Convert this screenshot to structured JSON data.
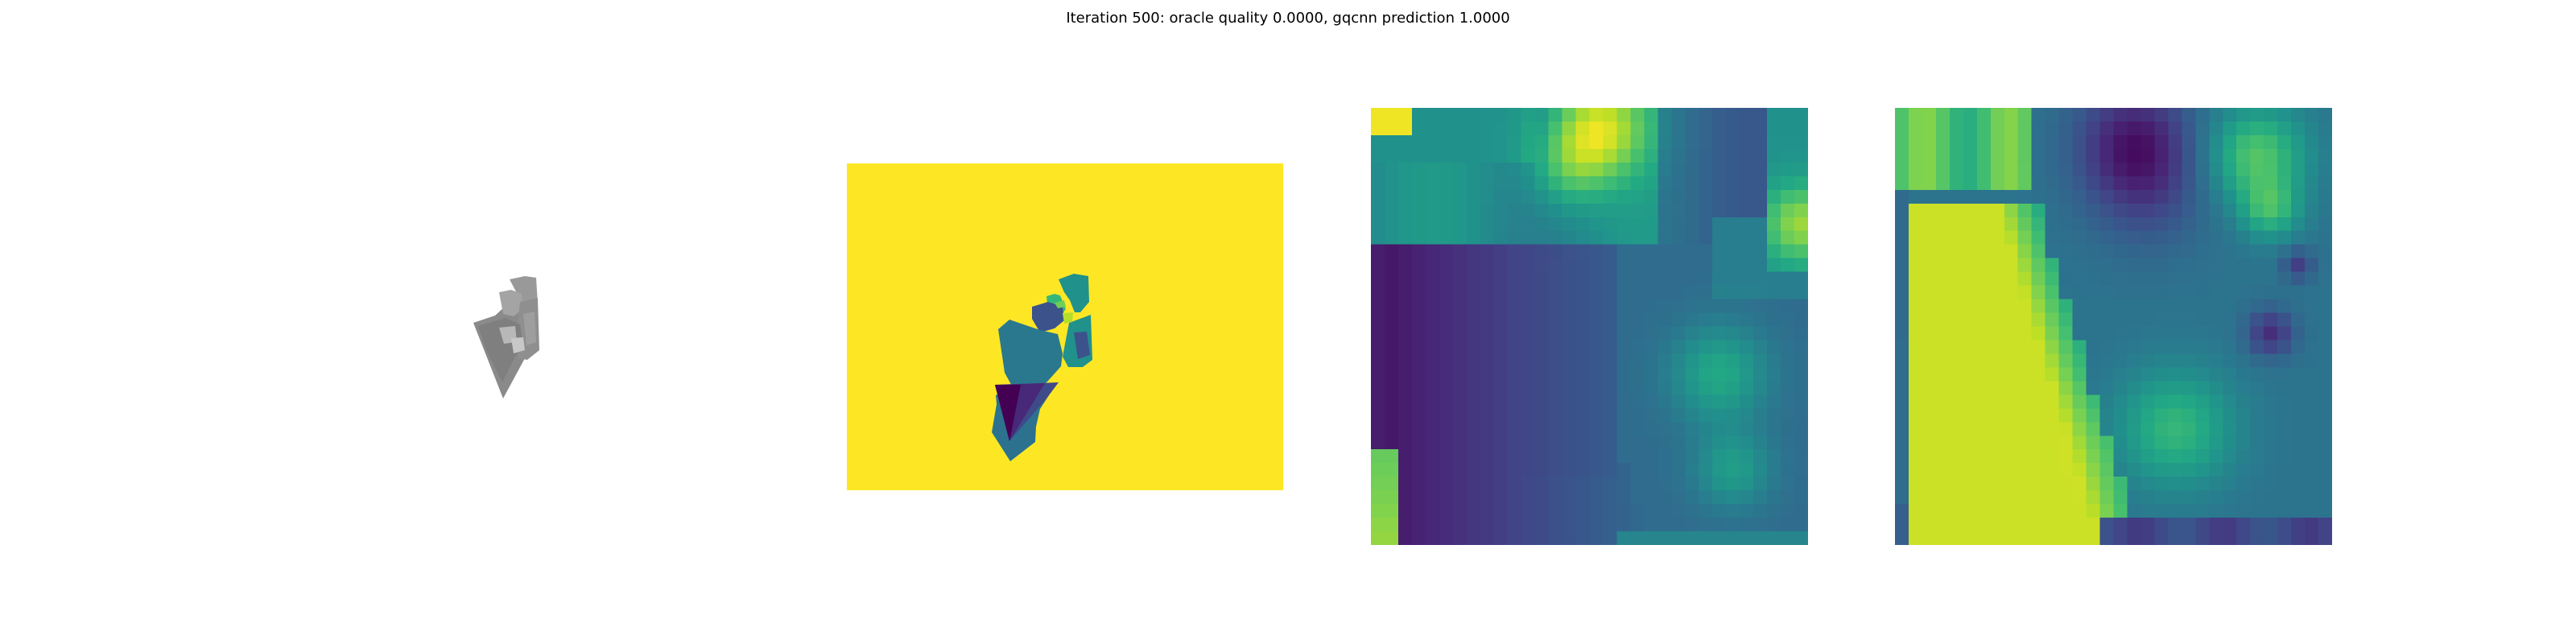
{
  "figure": {
    "title": "Iteration 500: oracle quality 0.0000, gqcnn prediction 1.0000"
  },
  "colors": {
    "background": "#ffffff",
    "viridis_yellow": "#fde725",
    "viridis_dark": "#440154",
    "render_gray": "#8c8c8c"
  },
  "chart_data": [
    {
      "type": "heatmap",
      "title": "",
      "description_of_content": "",
      "colormap": "gray",
      "grid": false,
      "axes": "off"
    },
    {
      "type": "heatmap",
      "title": "",
      "colormap": "viridis",
      "grid": false,
      "axes": "off"
    },
    {
      "type": "heatmap",
      "title": "",
      "colormap": "viridis",
      "grid": false,
      "axes": "off"
    },
    {
      "type": "heatmap",
      "title": "",
      "colormap": "viridis",
      "grid": false,
      "axes": "off"
    }
  ]
}
